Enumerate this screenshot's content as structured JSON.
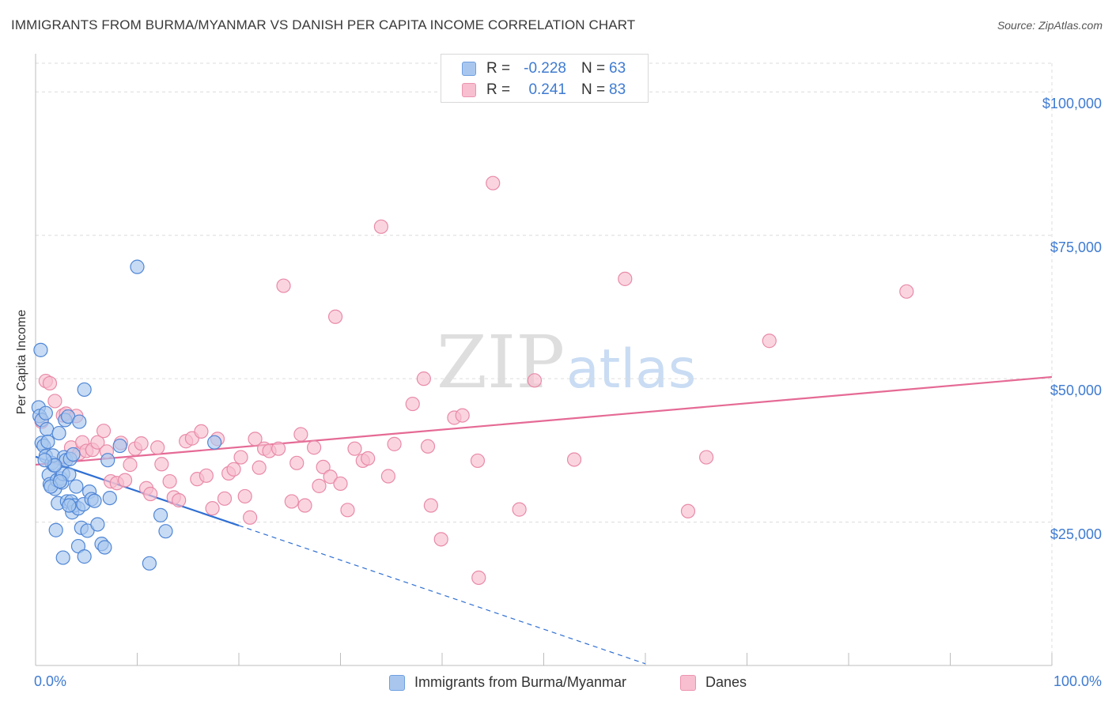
{
  "title": "IMMIGRANTS FROM BURMA/MYANMAR VS DANISH PER CAPITA INCOME CORRELATION CHART",
  "source": "Source: ZipAtlas.com",
  "watermark": {
    "zip": "ZIP",
    "atlas": "atlas"
  },
  "colors": {
    "blue_fill": "#a9c7ee",
    "blue_stroke": "#4f86d6",
    "blue_line": "#2f6fd3",
    "pink_fill": "#f7bfd0",
    "pink_stroke": "#e98aa8",
    "pink_line": "#e56a95",
    "tick_text": "#3f7bd1",
    "grid": "#dcdcdc"
  },
  "stats": [
    {
      "r_label": "R =",
      "r_value": "-0.228",
      "n_label": "N =",
      "n_value": "63",
      "color": "#a9c7ee",
      "border": "#6f9fe0"
    },
    {
      "r_label": "R =",
      "r_value": "0.241",
      "n_label": "N =",
      "n_value": "83",
      "color": "#f7bfd0",
      "border": "#ec94b0"
    }
  ],
  "legend": [
    {
      "label": "Immigrants from Burma/Myanmar",
      "color": "#a9c7ee",
      "border": "#6f9fe0"
    },
    {
      "label": "Danes",
      "color": "#f7bfd0",
      "border": "#ec94b0"
    }
  ],
  "chart_data": {
    "type": "scatter",
    "title": "IMMIGRANTS FROM BURMA/MYANMAR VS DANISH PER CAPITA INCOME CORRELATION CHART",
    "xlabel": "",
    "ylabel": "Per Capita Income",
    "xlim": [
      0,
      100
    ],
    "ylim": [
      0,
      105000
    ],
    "x_tick_labels": [
      "0.0%",
      "100.0%"
    ],
    "y_ticks": [
      25000,
      50000,
      75000,
      100000
    ],
    "y_tick_labels": [
      "$25,000",
      "$50,000",
      "$75,000",
      "$100,000"
    ],
    "grid": true,
    "legend_position": "bottom",
    "series": [
      {
        "name": "Immigrants from Burma/Myanmar",
        "r": -0.228,
        "n": 63,
        "points": [
          [
            0.3,
            45000
          ],
          [
            0.4,
            43500
          ],
          [
            0.6,
            42800
          ],
          [
            0.5,
            55000
          ],
          [
            0.6,
            38800
          ],
          [
            0.8,
            38300
          ],
          [
            1.0,
            44000
          ],
          [
            1.1,
            41200
          ],
          [
            1.2,
            39000
          ],
          [
            1.0,
            36500
          ],
          [
            1.3,
            33200
          ],
          [
            1.6,
            35300
          ],
          [
            1.8,
            34900
          ],
          [
            1.7,
            36600
          ],
          [
            1.4,
            31600
          ],
          [
            1.9,
            30800
          ],
          [
            2.1,
            32300
          ],
          [
            2.2,
            28300
          ],
          [
            2.3,
            40500
          ],
          [
            2.5,
            32600
          ],
          [
            2.6,
            31900
          ],
          [
            2.7,
            33400
          ],
          [
            2.8,
            36300
          ],
          [
            2.9,
            42800
          ],
          [
            3.0,
            35800
          ],
          [
            3.1,
            28600
          ],
          [
            3.2,
            43400
          ],
          [
            3.3,
            33300
          ],
          [
            3.4,
            36000
          ],
          [
            3.5,
            28600
          ],
          [
            3.6,
            26700
          ],
          [
            3.7,
            36800
          ],
          [
            3.8,
            27900
          ],
          [
            4.0,
            31200
          ],
          [
            4.2,
            27400
          ],
          [
            4.3,
            42500
          ],
          [
            4.5,
            24000
          ],
          [
            4.7,
            28100
          ],
          [
            4.8,
            48100
          ],
          [
            5.1,
            23500
          ],
          [
            5.3,
            30300
          ],
          [
            5.5,
            29000
          ],
          [
            5.8,
            28700
          ],
          [
            6.1,
            24600
          ],
          [
            6.5,
            21200
          ],
          [
            6.8,
            20600
          ],
          [
            7.1,
            35800
          ],
          [
            7.3,
            29200
          ],
          [
            8.3,
            38300
          ],
          [
            10.0,
            69500
          ],
          [
            11.2,
            17800
          ],
          [
            12.3,
            26200
          ],
          [
            12.8,
            23400
          ],
          [
            17.6,
            38900
          ],
          [
            2.0,
            23600
          ],
          [
            2.7,
            18800
          ],
          [
            4.2,
            20800
          ],
          [
            4.8,
            19000
          ],
          [
            1.5,
            31200
          ],
          [
            3.3,
            27900
          ],
          [
            2.4,
            32100
          ],
          [
            1.9,
            34900
          ],
          [
            0.9,
            35800
          ]
        ],
        "trend": {
          "x0": 0,
          "y0": 36400,
          "x1": 20,
          "y1": 24400,
          "dash_to_x": 60,
          "dash_to_y": 300
        }
      },
      {
        "name": "Danes",
        "r": 0.241,
        "n": 83,
        "points": [
          [
            0.6,
            42500
          ],
          [
            1.0,
            49600
          ],
          [
            1.4,
            49200
          ],
          [
            1.9,
            46100
          ],
          [
            2.7,
            43600
          ],
          [
            3.0,
            43900
          ],
          [
            3.5,
            38000
          ],
          [
            4.0,
            43500
          ],
          [
            4.3,
            37000
          ],
          [
            4.6,
            38900
          ],
          [
            5.0,
            37400
          ],
          [
            5.6,
            37600
          ],
          [
            6.1,
            38900
          ],
          [
            6.7,
            40900
          ],
          [
            7.0,
            37300
          ],
          [
            7.4,
            32100
          ],
          [
            8.0,
            31800
          ],
          [
            8.4,
            38800
          ],
          [
            8.8,
            32300
          ],
          [
            9.3,
            35000
          ],
          [
            9.8,
            37800
          ],
          [
            10.4,
            38700
          ],
          [
            10.9,
            30900
          ],
          [
            11.3,
            29900
          ],
          [
            12.0,
            38000
          ],
          [
            12.4,
            35100
          ],
          [
            13.2,
            32100
          ],
          [
            13.6,
            29300
          ],
          [
            14.1,
            28800
          ],
          [
            14.8,
            39100
          ],
          [
            15.4,
            39600
          ],
          [
            15.9,
            32500
          ],
          [
            16.3,
            40800
          ],
          [
            16.8,
            33100
          ],
          [
            17.4,
            27400
          ],
          [
            17.9,
            39500
          ],
          [
            18.6,
            29100
          ],
          [
            19.0,
            33500
          ],
          [
            19.5,
            34200
          ],
          [
            20.2,
            36300
          ],
          [
            20.6,
            29500
          ],
          [
            21.1,
            25800
          ],
          [
            21.6,
            39500
          ],
          [
            22.0,
            34500
          ],
          [
            22.5,
            37800
          ],
          [
            23.0,
            37400
          ],
          [
            23.9,
            37800
          ],
          [
            24.4,
            66200
          ],
          [
            25.2,
            28600
          ],
          [
            25.7,
            35300
          ],
          [
            26.1,
            40300
          ],
          [
            26.5,
            27900
          ],
          [
            27.4,
            38000
          ],
          [
            27.9,
            31300
          ],
          [
            28.3,
            34600
          ],
          [
            29.0,
            32900
          ],
          [
            29.5,
            60800
          ],
          [
            30.0,
            31700
          ],
          [
            30.7,
            27100
          ],
          [
            31.4,
            37800
          ],
          [
            32.2,
            35700
          ],
          [
            32.7,
            36100
          ],
          [
            34.0,
            76500
          ],
          [
            34.7,
            33000
          ],
          [
            35.3,
            38600
          ],
          [
            37.1,
            45600
          ],
          [
            38.2,
            50000
          ],
          [
            38.6,
            38200
          ],
          [
            38.9,
            27900
          ],
          [
            39.9,
            22000
          ],
          [
            41.2,
            43200
          ],
          [
            42.0,
            43600
          ],
          [
            43.5,
            35700
          ],
          [
            43.6,
            15300
          ],
          [
            45.0,
            84100
          ],
          [
            47.6,
            27200
          ],
          [
            49.1,
            49700
          ],
          [
            53.0,
            35900
          ],
          [
            58.0,
            67400
          ],
          [
            64.2,
            26900
          ],
          [
            66.0,
            36300
          ],
          [
            72.2,
            56600
          ],
          [
            85.7,
            65200
          ]
        ],
        "trend": {
          "x0": 0,
          "y0": 35000,
          "x1": 100,
          "y1": 50300
        }
      }
    ]
  }
}
